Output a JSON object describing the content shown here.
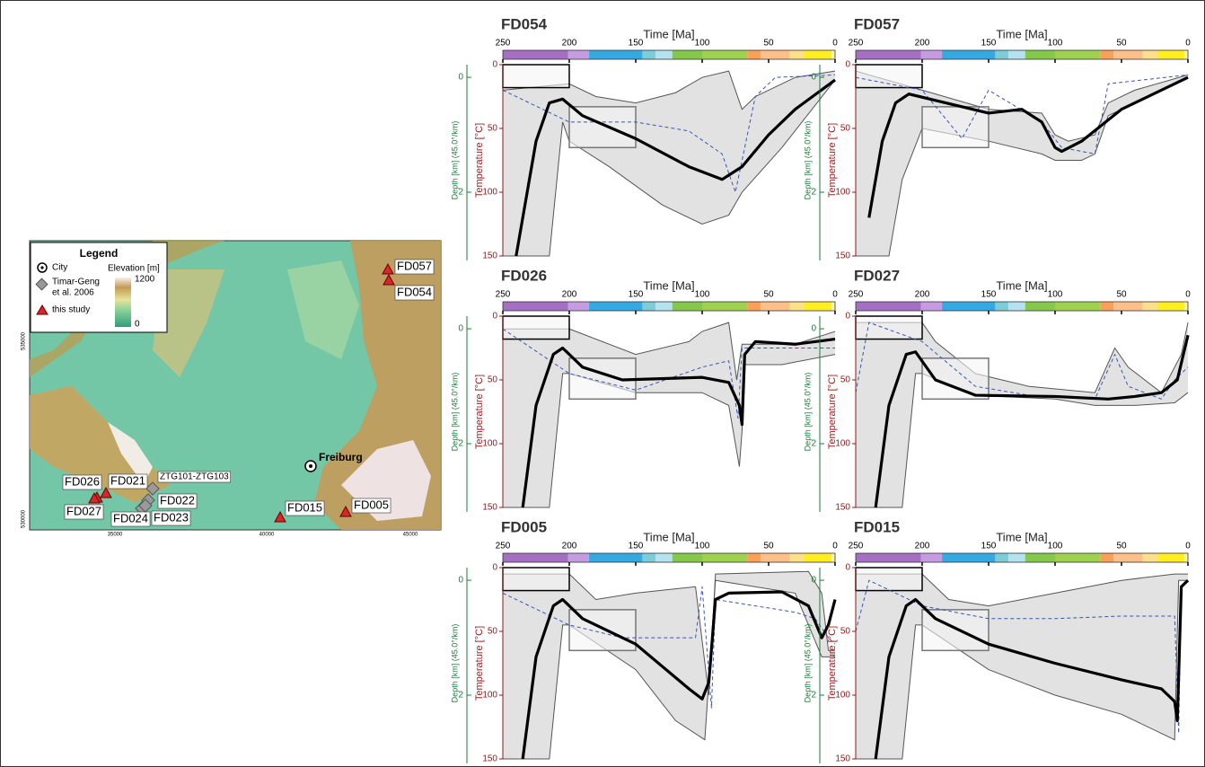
{
  "map": {
    "legend": {
      "title": "Legend",
      "items": [
        "City",
        [
          "Timar-Geng",
          "et al. 2006"
        ],
        "this study"
      ],
      "elevation_label": "Elevation [m]",
      "elevation_ticks": [
        "1200",
        "0"
      ]
    },
    "city": "Freiburg",
    "samples": [
      "FD057",
      "FD054",
      "FD026",
      "FD021",
      "FD027",
      "FD024",
      "FD022",
      "FD023",
      "ZTG101-ZTG103",
      "FD015",
      "FD005"
    ],
    "x_ticks": [
      "35000",
      "40000",
      "45000"
    ],
    "y_ticks": [
      "535000",
      "530000"
    ]
  },
  "chart_data": [
    {
      "type": "line",
      "title": "FD054",
      "x_label": "Time [Ma]",
      "y_label": "Temperature [°C]",
      "y2_label": "Depth [km] (45.0°/km)",
      "xlim": [
        250,
        0
      ],
      "xticks": [
        250,
        200,
        150,
        100,
        50,
        0
      ],
      "ylim": [
        0,
        150
      ],
      "yticks": [
        0,
        50,
        100,
        150
      ],
      "y2lim": [
        -0.22,
        3.11
      ],
      "y2ticks": [
        0,
        2
      ],
      "band": {
        "fill": "#e2e2e2",
        "color": "#555555",
        "upper": {
          "x": [
            250,
            200,
            180,
            150,
            120,
            100,
            80,
            75,
            70,
            60,
            30,
            0
          ],
          "values": [
            20,
            15,
            25,
            30,
            22,
            10,
            5,
            20,
            35,
            25,
            10,
            5
          ]
        },
        "lower": {
          "x": [
            250,
            215,
            205,
            200,
            170,
            130,
            100,
            80,
            70,
            40,
            0
          ],
          "values": [
            150,
            150,
            45,
            60,
            80,
            110,
            125,
            118,
            100,
            65,
            12
          ]
        }
      },
      "constraints": [
        {
          "xlim": [
            250,
            200
          ],
          "ylim": [
            0,
            18
          ],
          "color": "#000000"
        },
        {
          "xlim": [
            200,
            150
          ],
          "ylim": [
            33,
            65
          ],
          "color": "#777777"
        }
      ],
      "series": [
        {
          "color": "#3a55b5",
          "dashed": true,
          "x": [
            250,
            200,
            150,
            110,
            85,
            75,
            60,
            45,
            0
          ],
          "values": [
            20,
            45,
            45,
            52,
            70,
            100,
            25,
            10,
            8
          ]
        },
        {
          "color": "#000000",
          "dashed": false,
          "x": [
            240,
            225,
            215,
            205,
            190,
            150,
            110,
            85,
            70,
            50,
            30,
            0
          ],
          "values": [
            150,
            60,
            30,
            27,
            40,
            58,
            80,
            90,
            80,
            55,
            35,
            12
          ]
        }
      ]
    },
    {
      "type": "line",
      "title": "FD057",
      "x_label": "Time [Ma]",
      "y_label": "Temperature [°C]",
      "y2_label": "Depth [km] (45.0°/km)",
      "xlim": [
        250,
        0
      ],
      "xticks": [
        250,
        200,
        150,
        100,
        50,
        0
      ],
      "ylim": [
        0,
        150
      ],
      "yticks": [
        0,
        50,
        100,
        150
      ],
      "y2lim": [
        -0.22,
        3.11
      ],
      "y2ticks": [
        0,
        2
      ],
      "band": {
        "fill": "#e2e2e2",
        "color": "#555555",
        "upper": {
          "x": [
            250,
            200,
            150,
            110,
            100,
            90,
            70,
            60,
            40,
            0
          ],
          "values": [
            5,
            20,
            35,
            38,
            55,
            60,
            55,
            30,
            20,
            8
          ]
        },
        "lower": {
          "x": [
            250,
            225,
            215,
            200,
            150,
            110,
            100,
            80,
            70,
            60,
            30,
            0
          ],
          "values": [
            150,
            150,
            90,
            50,
            60,
            70,
            75,
            75,
            70,
            40,
            25,
            10
          ]
        }
      },
      "constraints": [
        {
          "xlim": [
            250,
            200
          ],
          "ylim": [
            0,
            18
          ],
          "color": "#000000"
        },
        {
          "xlim": [
            200,
            150
          ],
          "ylim": [
            33,
            65
          ],
          "color": "#777777"
        }
      ],
      "series": [
        {
          "color": "#3a55b5",
          "dashed": true,
          "x": [
            250,
            200,
            170,
            150,
            110,
            95,
            70,
            60,
            0
          ],
          "values": [
            10,
            20,
            58,
            20,
            45,
            65,
            70,
            15,
            8
          ]
        },
        {
          "color": "#000000",
          "dashed": false,
          "x": [
            240,
            230,
            220,
            210,
            190,
            150,
            125,
            110,
            100,
            95,
            80,
            50,
            0
          ],
          "values": [
            120,
            60,
            30,
            23,
            28,
            38,
            35,
            45,
            65,
            68,
            60,
            35,
            10
          ]
        }
      ]
    },
    {
      "type": "line",
      "title": "FD026",
      "x_label": "Time [Ma]",
      "y_label": "Temperature [°C]",
      "y2_label": "Depth [km] (45.0°/km)",
      "xlim": [
        250,
        0
      ],
      "xticks": [
        250,
        200,
        150,
        100,
        50,
        0
      ],
      "ylim": [
        0,
        150
      ],
      "yticks": [
        0,
        50,
        100,
        150
      ],
      "y2lim": [
        -0.22,
        3.11
      ],
      "y2ticks": [
        0,
        2
      ],
      "band": {
        "fill": "#e2e2e2",
        "color": "#555555",
        "upper": {
          "x": [
            250,
            200,
            150,
            110,
            100,
            80,
            74,
            70,
            30,
            0
          ],
          "values": [
            10,
            10,
            30,
            20,
            12,
            5,
            50,
            22,
            22,
            12
          ]
        },
        "lower": {
          "x": [
            250,
            215,
            205,
            200,
            150,
            100,
            80,
            72,
            70,
            68,
            40,
            0
          ],
          "values": [
            150,
            150,
            45,
            45,
            60,
            60,
            70,
            118,
            90,
            38,
            38,
            30
          ]
        }
      },
      "constraints": [
        {
          "xlim": [
            250,
            200
          ],
          "ylim": [
            0,
            18
          ],
          "color": "#000000"
        },
        {
          "xlim": [
            200,
            150
          ],
          "ylim": [
            33,
            65
          ],
          "color": "#777777"
        }
      ],
      "series": [
        {
          "color": "#3a55b5",
          "dashed": true,
          "x": [
            250,
            200,
            150,
            100,
            80,
            73,
            70,
            0
          ],
          "values": [
            10,
            45,
            58,
            40,
            35,
            80,
            25,
            25
          ]
        },
        {
          "color": "#000000",
          "dashed": false,
          "x": [
            235,
            225,
            212,
            205,
            190,
            160,
            100,
            80,
            72,
            70,
            68,
            60,
            30,
            0
          ],
          "values": [
            150,
            70,
            30,
            25,
            40,
            50,
            48,
            52,
            70,
            85,
            30,
            20,
            22,
            18
          ]
        }
      ]
    },
    {
      "type": "line",
      "title": "FD027",
      "x_label": "Time [Ma]",
      "y_label": "Temperature [°C]",
      "y2_label": "Depth [km] (45.0°/km)",
      "xlim": [
        250,
        0
      ],
      "xticks": [
        250,
        200,
        150,
        100,
        50,
        0
      ],
      "ylim": [
        0,
        150
      ],
      "yticks": [
        0,
        50,
        100,
        150
      ],
      "y2lim": [
        -0.22,
        3.11
      ],
      "y2ticks": [
        0,
        2
      ],
      "band": {
        "fill": "#e2e2e2",
        "color": "#555555",
        "upper": {
          "x": [
            250,
            200,
            190,
            160,
            120,
            70,
            55,
            45,
            20,
            5,
            0
          ],
          "values": [
            5,
            5,
            20,
            45,
            55,
            60,
            25,
            40,
            60,
            30,
            5
          ]
        },
        "lower": {
          "x": [
            250,
            215,
            205,
            200,
            160,
            100,
            70,
            40,
            10,
            0
          ],
          "values": [
            150,
            150,
            45,
            45,
            62,
            65,
            70,
            70,
            68,
            60
          ]
        }
      },
      "constraints": [
        {
          "xlim": [
            250,
            200
          ],
          "ylim": [
            0,
            18
          ],
          "color": "#000000"
        },
        {
          "xlim": [
            200,
            150
          ],
          "ylim": [
            33,
            65
          ],
          "color": "#777777"
        }
      ],
      "series": [
        {
          "color": "#3a55b5",
          "dashed": true,
          "x": [
            250,
            240,
            200,
            160,
            120,
            70,
            55,
            45,
            20,
            10,
            0
          ],
          "values": [
            60,
            5,
            20,
            55,
            62,
            65,
            30,
            55,
            65,
            50,
            40
          ]
        },
        {
          "color": "#000000",
          "dashed": false,
          "x": [
            235,
            225,
            212,
            205,
            190,
            160,
            100,
            60,
            40,
            20,
            8,
            0
          ],
          "values": [
            150,
            70,
            30,
            28,
            50,
            62,
            63,
            65,
            63,
            60,
            50,
            15
          ]
        }
      ]
    },
    {
      "type": "line",
      "title": "FD005",
      "x_label": "Time [Ma]",
      "y_label": "Temperature [°C]",
      "y2_label": "Depth [km] (45.0°/km)",
      "xlim": [
        250,
        0
      ],
      "xticks": [
        250,
        200,
        150,
        100,
        50,
        0
      ],
      "ylim": [
        0,
        150
      ],
      "yticks": [
        0,
        50,
        100,
        150
      ],
      "y2lim": [
        -0.22,
        3.11
      ],
      "y2ticks": [
        0,
        2
      ],
      "band": {
        "fill": "#e2e2e2",
        "color": "#555555",
        "upper": {
          "x": [
            250,
            200,
            180,
            150,
            105,
            95,
            90,
            20,
            10,
            5,
            0
          ],
          "values": [
            5,
            5,
            25,
            20,
            15,
            100,
            5,
            3,
            20,
            65,
            65
          ]
        },
        "lower": {
          "x": [
            250,
            215,
            205,
            200,
            150,
            120,
            98,
            90,
            30,
            10,
            0
          ],
          "values": [
            150,
            150,
            45,
            45,
            80,
            120,
            135,
            10,
            20,
            70,
            70
          ]
        }
      },
      "constraints": [
        {
          "xlim": [
            250,
            200
          ],
          "ylim": [
            0,
            18
          ],
          "color": "#000000"
        },
        {
          "xlim": [
            200,
            150
          ],
          "ylim": [
            33,
            65
          ],
          "color": "#777777"
        }
      ],
      "series": [
        {
          "color": "#3a55b5",
          "dashed": true,
          "x": [
            250,
            200,
            160,
            105,
            100,
            93,
            90,
            30,
            15,
            5,
            0
          ],
          "values": [
            20,
            45,
            55,
            55,
            15,
            110,
            25,
            35,
            40,
            55,
            60
          ]
        },
        {
          "color": "#000000",
          "dashed": false,
          "x": [
            235,
            225,
            212,
            205,
            190,
            150,
            110,
            100,
            95,
            90,
            80,
            40,
            20,
            10,
            5,
            0
          ],
          "values": [
            150,
            70,
            30,
            25,
            40,
            60,
            95,
            103,
            90,
            25,
            20,
            19,
            30,
            55,
            45,
            25
          ]
        }
      ]
    },
    {
      "type": "line",
      "title": "FD015",
      "x_label": "Time [Ma]",
      "y_label": "Temperature [°C]",
      "y2_label": "Depth [km] (45.0°/km)",
      "xlim": [
        250,
        0
      ],
      "xticks": [
        250,
        200,
        150,
        100,
        50,
        0
      ],
      "ylim": [
        0,
        150
      ],
      "yticks": [
        0,
        50,
        100,
        150
      ],
      "y2lim": [
        -0.22,
        3.11
      ],
      "y2ticks": [
        0,
        2
      ],
      "band": {
        "fill": "#e2e2e2",
        "color": "#555555",
        "upper": {
          "x": [
            250,
            200,
            180,
            150,
            100,
            50,
            10,
            5,
            0
          ],
          "values": [
            5,
            5,
            25,
            30,
            20,
            10,
            5,
            5,
            5
          ]
        },
        "lower": {
          "x": [
            250,
            215,
            205,
            200,
            150,
            100,
            50,
            20,
            10,
            7,
            0
          ],
          "values": [
            150,
            150,
            45,
            45,
            80,
            100,
            115,
            130,
            135,
            10,
            10
          ]
        }
      },
      "constraints": [
        {
          "xlim": [
            250,
            200
          ],
          "ylim": [
            0,
            18
          ],
          "color": "#000000"
        },
        {
          "xlim": [
            200,
            150
          ],
          "ylim": [
            33,
            65
          ],
          "color": "#777777"
        }
      ],
      "series": [
        {
          "color": "#3a55b5",
          "dashed": true,
          "x": [
            250,
            240,
            200,
            150,
            100,
            50,
            10,
            7,
            5,
            0
          ],
          "values": [
            50,
            10,
            30,
            40,
            40,
            38,
            38,
            130,
            15,
            10
          ]
        },
        {
          "color": "#000000",
          "dashed": false,
          "x": [
            235,
            225,
            212,
            205,
            190,
            150,
            100,
            50,
            20,
            10,
            8,
            5,
            0
          ],
          "values": [
            150,
            70,
            30,
            25,
            40,
            60,
            75,
            88,
            95,
            105,
            120,
            15,
            10
          ]
        }
      ]
    }
  ]
}
